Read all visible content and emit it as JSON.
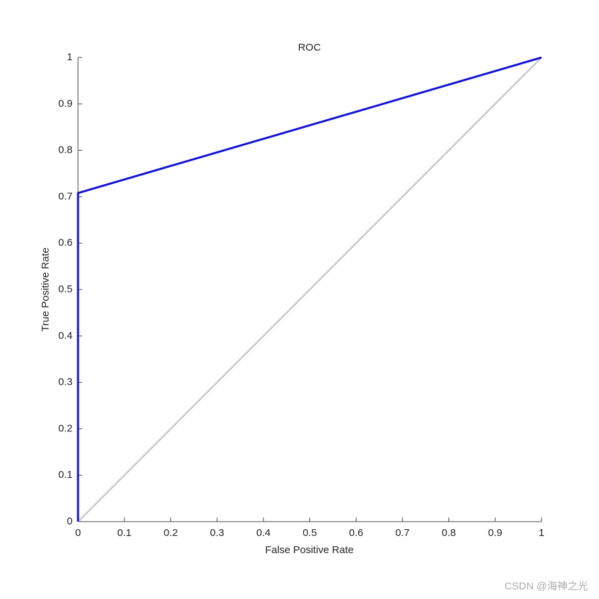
{
  "chart_data": {
    "type": "line",
    "title": "ROC",
    "x_label": "False Positive Rate",
    "y_label": "True Positive Rate",
    "series": [
      {
        "color": "#c8c8c8",
        "x": [
          0,
          1
        ],
        "values": [
          0,
          1
        ]
      },
      {
        "color": "#1212d6",
        "x": [
          0,
          0,
          1
        ],
        "values": [
          0,
          0.708,
          1
        ]
      }
    ],
    "xlim": [
      0,
      1
    ],
    "ylim": [
      0,
      1
    ],
    "xticks": [
      0,
      0.1,
      0.2,
      0.3,
      0.4,
      0.5,
      0.6,
      0.7,
      0.8,
      0.9,
      1
    ],
    "yticks": [
      0,
      0.1,
      0.2,
      0.3,
      0.4,
      0.5,
      0.6,
      0.7,
      0.8,
      0.9,
      1
    ],
    "grid": false
  },
  "watermark": "CSDN @海神之光"
}
